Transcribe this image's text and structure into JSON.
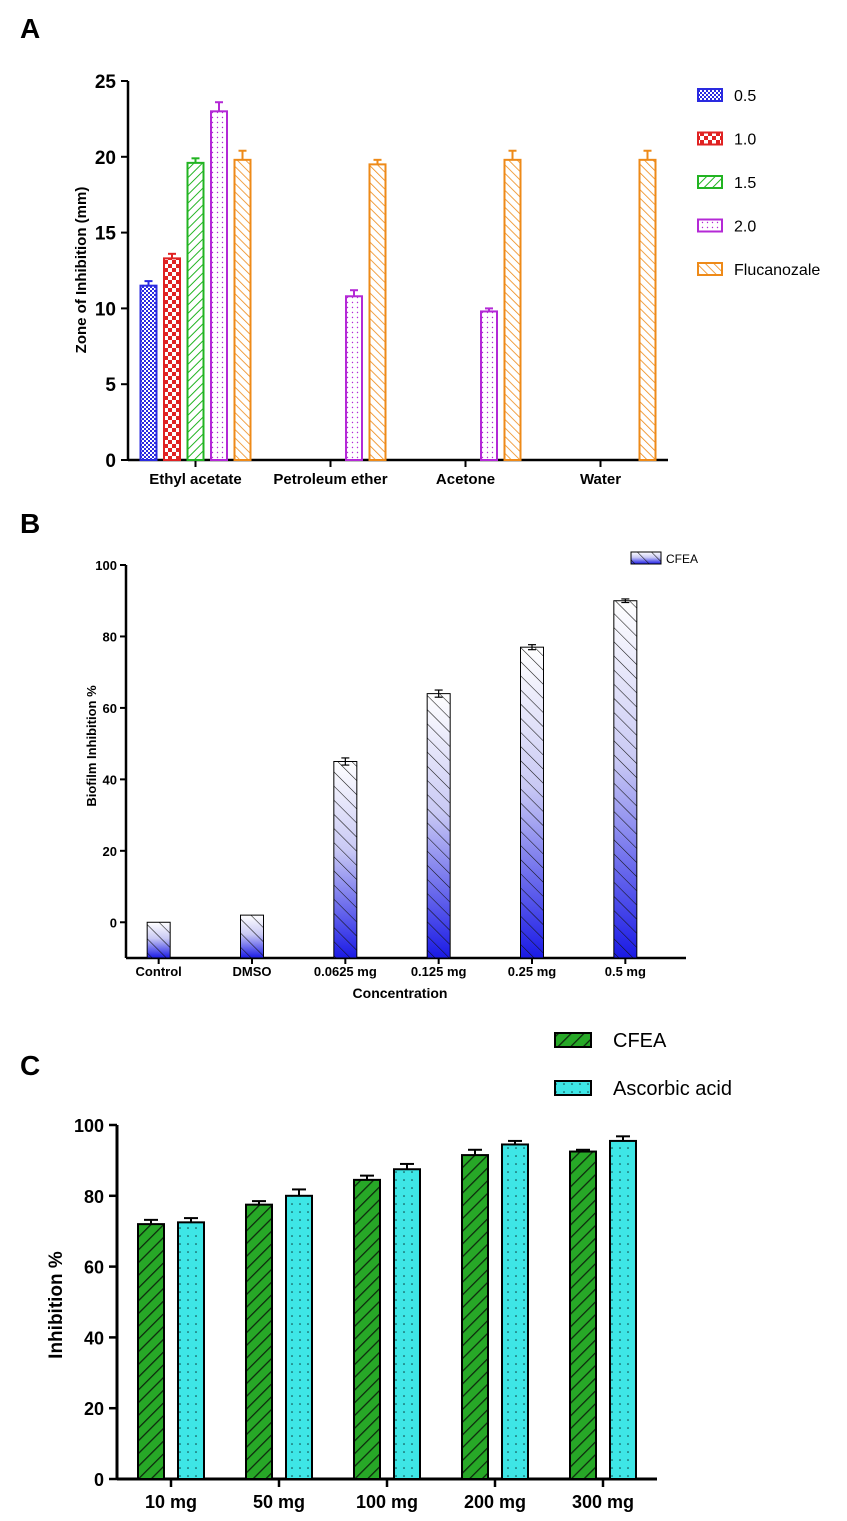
{
  "panels": {
    "a_label": "A",
    "b_label": "B",
    "c_label": "C"
  },
  "chart_data": [
    {
      "id": "A",
      "type": "bar",
      "title": "",
      "xlabel": "",
      "ylabel": "Zone of Inhibition (mm)",
      "ylim": [
        0,
        25
      ],
      "yticks": [
        0,
        5,
        10,
        15,
        20,
        25
      ],
      "categories": [
        "Ethyl acetate",
        "Petroleum ether",
        "Acetone",
        "Water"
      ],
      "series": [
        {
          "name": "0.5",
          "color": "#2a2ae0",
          "pattern": "checker-fine",
          "values": [
            11.5,
            null,
            null,
            null
          ],
          "errors": [
            0.3,
            null,
            null,
            null
          ]
        },
        {
          "name": "1.0",
          "color": "#e02222",
          "pattern": "checker",
          "values": [
            13.3,
            null,
            null,
            null
          ],
          "errors": [
            0.3,
            null,
            null,
            null
          ]
        },
        {
          "name": "1.5",
          "color": "#22b422",
          "pattern": "diag-right",
          "values": [
            19.6,
            null,
            null,
            null
          ],
          "errors": [
            0.3,
            null,
            null,
            null
          ]
        },
        {
          "name": "2.0",
          "color": "#b429d6",
          "pattern": "dots",
          "values": [
            23.0,
            10.8,
            9.8,
            null
          ],
          "errors": [
            0.6,
            0.4,
            0.2,
            null
          ]
        },
        {
          "name": "Flucanozale",
          "color": "#ee8a18",
          "pattern": "diag-left",
          "values": [
            19.8,
            19.5,
            19.8,
            19.8
          ],
          "errors": [
            0.6,
            0.3,
            0.6,
            0.6
          ]
        }
      ],
      "legend": "right"
    },
    {
      "id": "B",
      "type": "bar",
      "title": "",
      "xlabel": "Concentration",
      "ylabel": "Biofilm Inhibition %",
      "ylim": [
        -10,
        100
      ],
      "yticks": [
        0,
        20,
        40,
        60,
        80,
        100
      ],
      "categories": [
        "Control",
        "DMSO",
        "0.0625 mg",
        "0.125 mg",
        "0.25 mg",
        "0.5 mg"
      ],
      "series": [
        {
          "name": "CFEA",
          "color": "#1a1ae6",
          "pattern": "diag-left-gradient",
          "values": [
            0,
            2,
            45,
            64,
            77,
            90
          ],
          "errors": [
            0,
            0,
            1,
            1,
            0.7,
            0.5
          ]
        }
      ],
      "legend": "top-right"
    },
    {
      "id": "C",
      "type": "bar",
      "title": "",
      "xlabel": "",
      "ylabel": "Inhibition %",
      "ylim": [
        0,
        100
      ],
      "yticks": [
        0,
        20,
        40,
        60,
        80,
        100
      ],
      "categories": [
        "10 mg",
        "50 mg",
        "100 mg",
        "200 mg",
        "300 mg"
      ],
      "series": [
        {
          "name": "CFEA",
          "color": "#27a827",
          "pattern": "diag-right-bold",
          "values": [
            72,
            77.5,
            84.5,
            91.5,
            92.5
          ],
          "errors": [
            1.2,
            1.0,
            1.2,
            1.5,
            0.5
          ]
        },
        {
          "name": "Ascorbic acid",
          "color": "#3ee6e6",
          "pattern": "dots",
          "values": [
            72.5,
            80,
            87.5,
            94.5,
            95.5
          ],
          "errors": [
            1.2,
            1.8,
            1.5,
            1.0,
            1.3
          ]
        }
      ],
      "legend": "top-right"
    }
  ]
}
